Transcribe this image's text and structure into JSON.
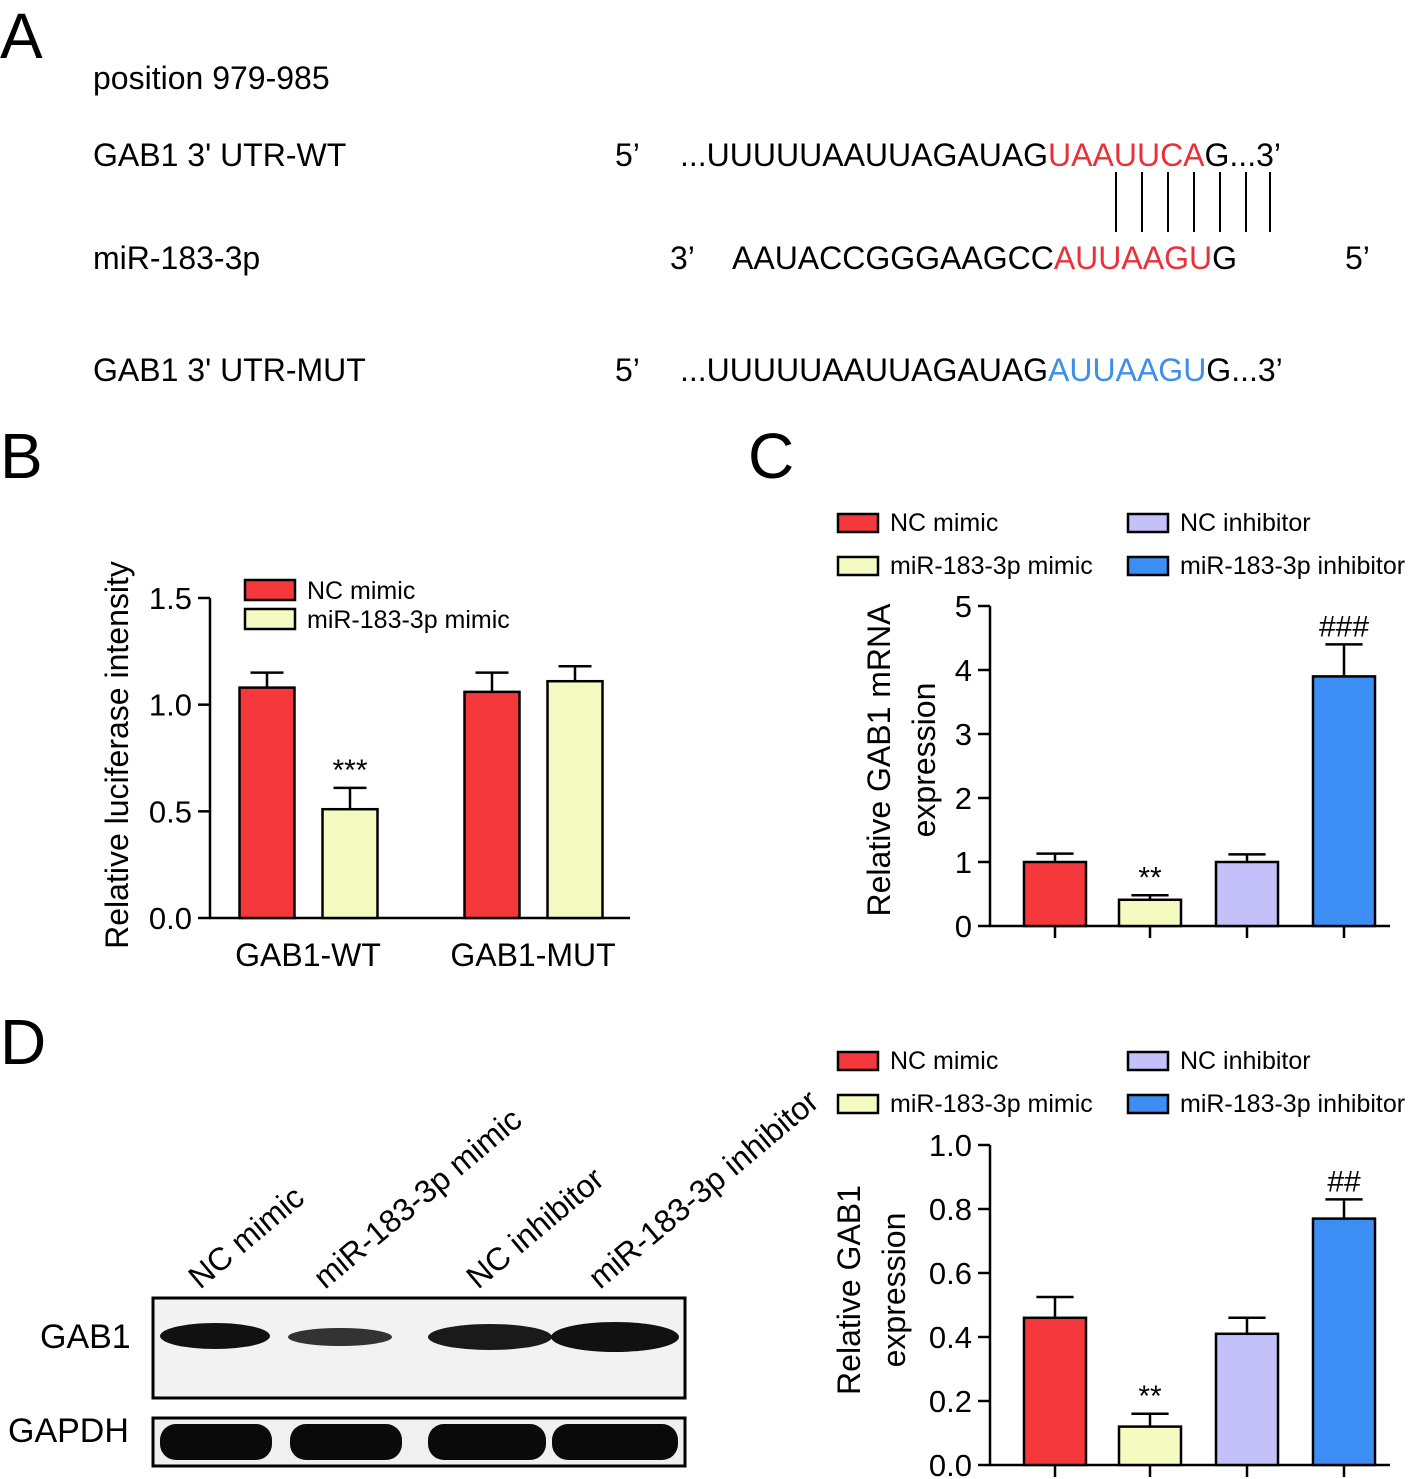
{
  "panel_labels": [
    "A",
    "B",
    "C",
    "D"
  ],
  "sequence": {
    "position": "position 979-985",
    "rows": [
      {
        "label": "GAB1 3' UTR-WT",
        "start": "5’",
        "parts": [
          "...UUUUUAAUUAGAUAG",
          "UAAUUCA",
          "G...3’"
        ],
        "end": null
      },
      {
        "label": "miR-183-3p",
        "start": "3’",
        "parts": [
          "AAUACCGGGAAGCC",
          "AUUAAGU",
          "G"
        ],
        "end": "5’"
      },
      {
        "label": "GAB1 3' UTR-MUT",
        "start": "5’",
        "parts": [
          "...UUUUUAAUUAGAUAG",
          "AUUAAGU",
          "G...3’"
        ],
        "end": null
      }
    ],
    "colors": [
      "#000000",
      "#e8313a",
      "#000000",
      "#000000",
      "#e8313a",
      "#000000",
      "#000000",
      "#3d8fe8",
      "#000000"
    ]
  },
  "chart_data": [
    {
      "type": "bar",
      "ylabel": "Relative luciferase intensity",
      "categories": [
        "GAB1-WT",
        "GAB1-MUT"
      ],
      "series": [
        {
          "name": "NC mimic",
          "color": "#f5383c",
          "values": [
            1.08,
            1.06
          ],
          "errors": [
            0.07,
            0.09
          ],
          "significance": [
            null,
            null
          ]
        },
        {
          "name": "miR-183-3p mimic",
          "color": "#f5fac0",
          "values": [
            0.51,
            1.11
          ],
          "errors": [
            0.1,
            0.07
          ],
          "significance": [
            "***",
            null
          ]
        }
      ],
      "ylim": [
        0,
        1.5
      ],
      "yticks": [
        {
          "value": 0,
          "label": "0.0"
        },
        {
          "value": 0.5,
          "label": "0.5"
        },
        {
          "value": 1,
          "label": "1.0"
        },
        {
          "value": 1.5,
          "label": "1.5"
        }
      ]
    },
    {
      "type": "bar",
      "ylabel": [
        "Relative GAB1 mRNA",
        "expression"
      ],
      "categories": [
        "NC mimic",
        "miR-183-3p mimic",
        "NC inhibitor",
        "miR-183-3p inhibitor"
      ],
      "colors": [
        "#f5383c",
        "#f5fac0",
        "#c4c0fa",
        "#3c8ef5"
      ],
      "values": [
        1.0,
        0.41,
        1.0,
        3.9
      ],
      "errors": [
        0.13,
        0.07,
        0.12,
        0.5
      ],
      "significance": [
        null,
        "**",
        null,
        "###"
      ],
      "ylim": [
        0,
        5
      ],
      "yticks": [
        0,
        1,
        2,
        3,
        4,
        5
      ]
    },
    {
      "type": "bar",
      "ylabel": [
        "Relative GAB1",
        "expression"
      ],
      "categories": [
        "NC mimic",
        "miR-183-3p mimic",
        "NC inhibitor",
        "miR-183-3p inhibitor"
      ],
      "colors": [
        "#f5383c",
        "#f5fac0",
        "#c4c0fa",
        "#3c8ef5"
      ],
      "values": [
        0.46,
        0.12,
        0.41,
        0.77
      ],
      "errors": [
        0.065,
        0.04,
        0.05,
        0.06
      ],
      "significance": [
        null,
        "**",
        null,
        "##"
      ],
      "ylim": [
        0,
        1
      ],
      "yticks": [
        {
          "value": 0,
          "label": "0.0"
        },
        {
          "value": 0.2,
          "label": "0.2"
        },
        {
          "value": 0.4,
          "label": "0.4"
        },
        {
          "value": 0.6,
          "label": "0.6"
        },
        {
          "value": 0.8,
          "label": "0.8"
        },
        {
          "value": 1,
          "label": "1.0"
        }
      ]
    }
  ],
  "blot": {
    "lanes": [
      "NC mimic",
      "miR-183-3p mimic",
      "NC inhibitor",
      "miR-183-3p inhibitor"
    ],
    "rows": [
      "GAB1",
      "GAPDH"
    ]
  }
}
